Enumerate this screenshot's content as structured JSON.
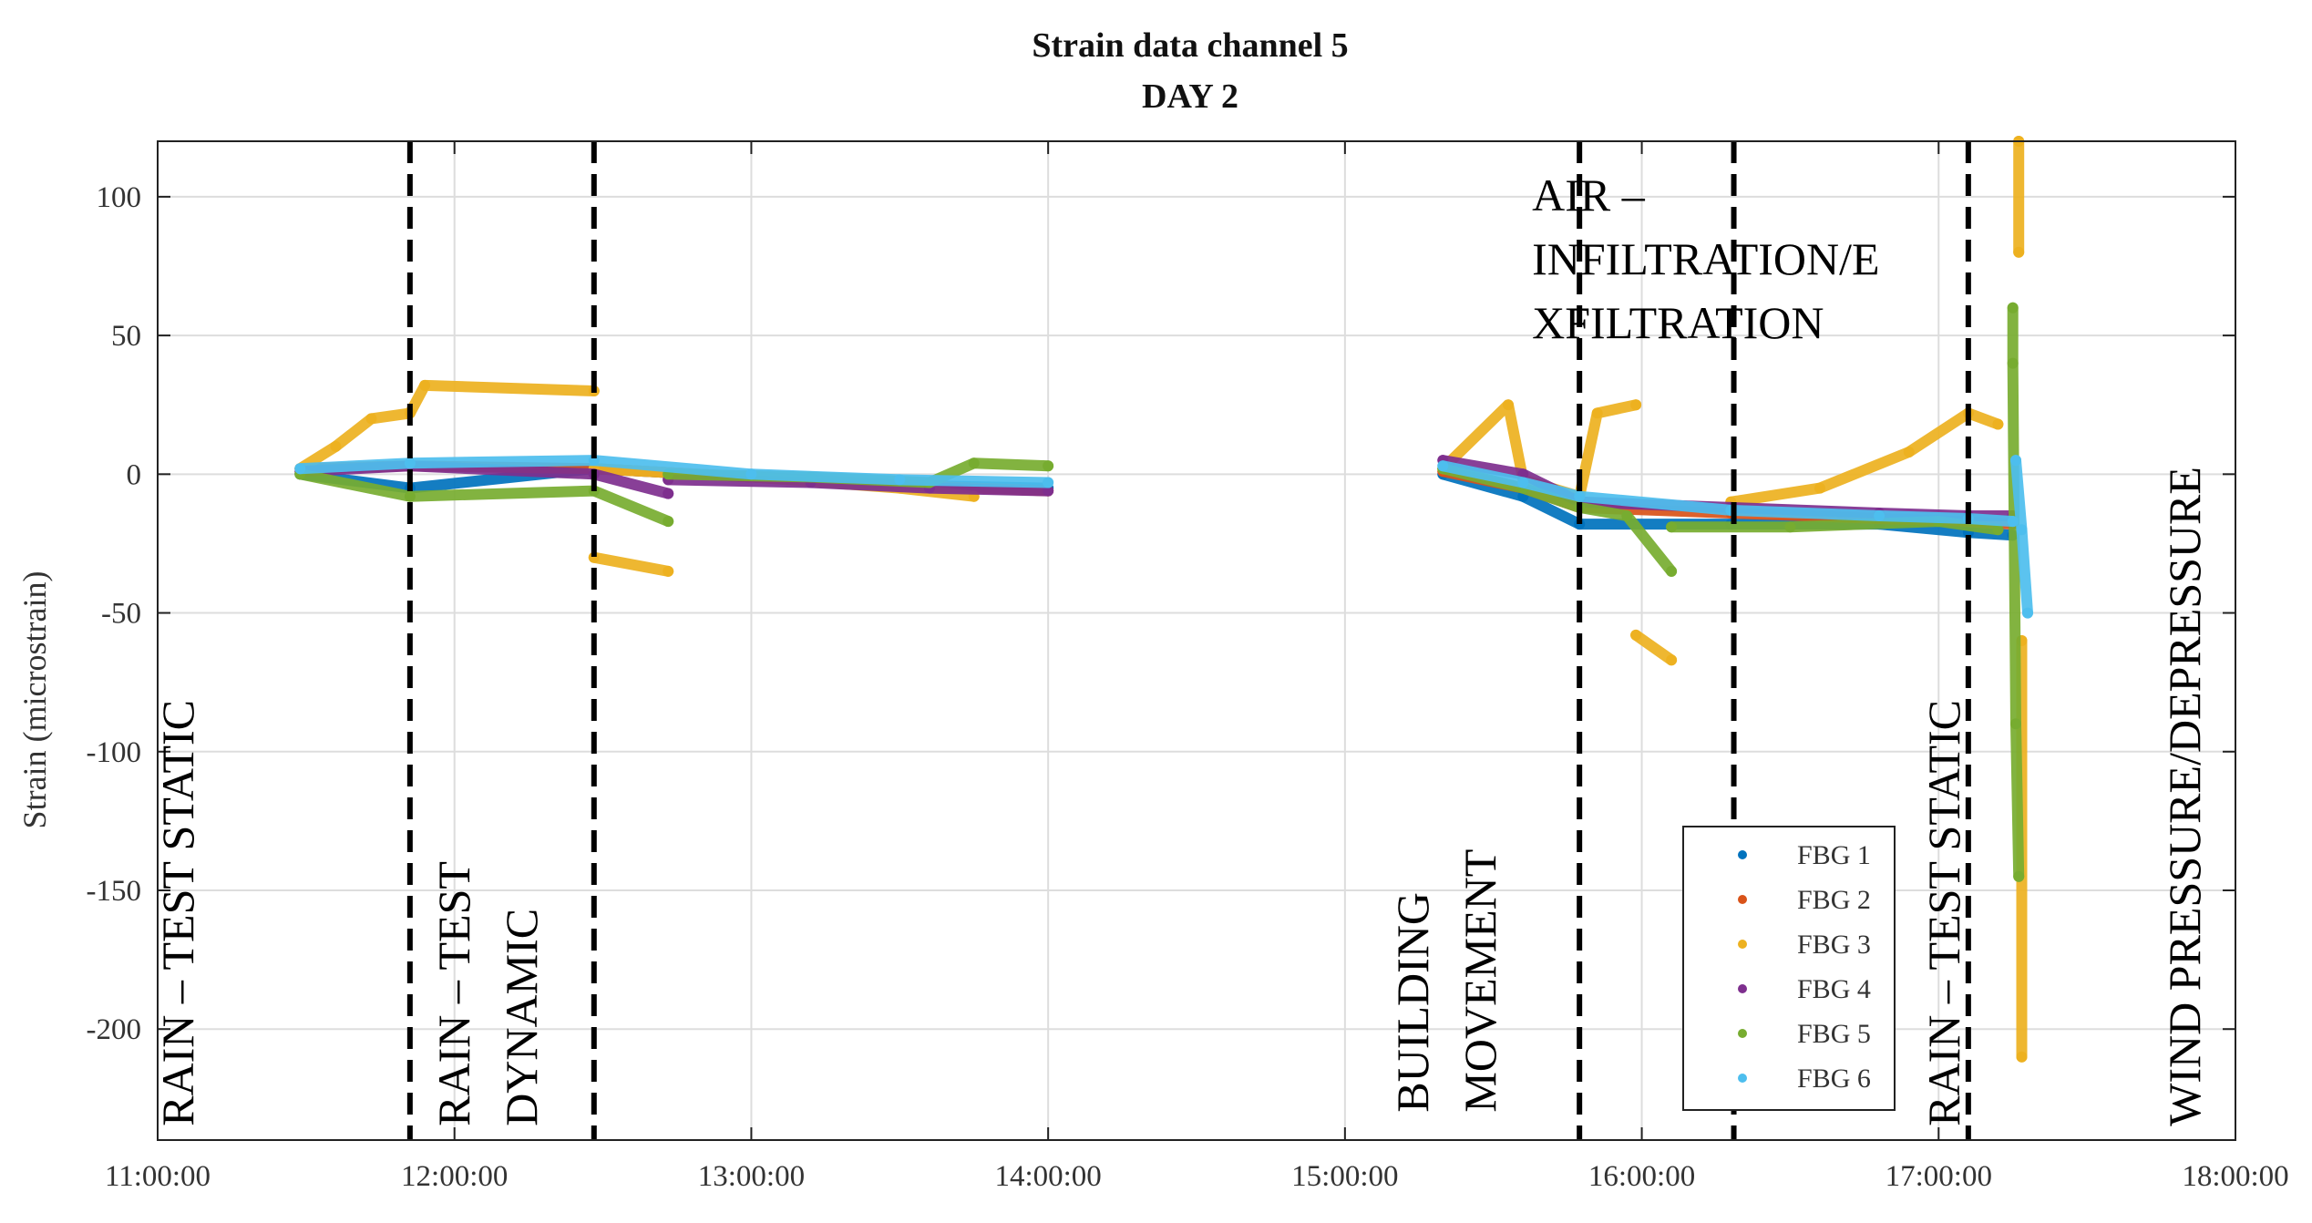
{
  "chart_data": {
    "type": "scatter",
    "title": "Strain data channel 5",
    "subtitle": "DAY 2",
    "xlabel": "",
    "ylabel": "Strain (microstrain)",
    "x_unit": "hours",
    "xlim": [
      11.0,
      18.0
    ],
    "ylim": [
      -240,
      120
    ],
    "x_ticks": [
      11,
      12,
      13,
      14,
      15,
      16,
      17,
      18
    ],
    "x_tick_labels": [
      "11:00:00",
      "12:00:00",
      "13:00:00",
      "14:00:00",
      "15:00:00",
      "16:00:00",
      "17:00:00",
      "18:00:00"
    ],
    "y_ticks": [
      100,
      50,
      0,
      -50,
      -100,
      -150,
      -200
    ],
    "y_tick_labels": [
      "100",
      "50",
      "0",
      "-50",
      "-100",
      "-150",
      "-200"
    ],
    "grid": true,
    "legend_position": "bottom-right",
    "event_lines_x": [
      11.85,
      12.47,
      15.79,
      16.31,
      17.1
    ],
    "annotations": [
      {
        "lines": [
          "RAIN – TEST STATIC"
        ],
        "x": 11.12,
        "y": -235,
        "rotated": true
      },
      {
        "lines": [
          "RAIN – TEST",
          "DYNAMIC"
        ],
        "x": 12.05,
        "y": -235,
        "rotated": true
      },
      {
        "lines": [
          "BUILDING",
          "MOVEMENT"
        ],
        "x": 15.28,
        "y": -230,
        "rotated": true
      },
      {
        "lines": [
          "AIR –",
          "INFILTRATION/E",
          "XFILTRATION"
        ],
        "x": 15.63,
        "y": 95,
        "rotated": false
      },
      {
        "lines": [
          "RAIN – TEST STATIC"
        ],
        "x": 17.07,
        "y": -235,
        "rotated": true
      },
      {
        "lines": [
          "WIND PRESSURE/DEPRESSURE"
        ],
        "x": 17.88,
        "y": -235,
        "rotated": true
      }
    ],
    "series": [
      {
        "name": "FBG 1",
        "color": "#0072BD",
        "segments": [
          [
            [
              11.48,
              0
            ],
            [
              11.85,
              -5
            ],
            [
              12.47,
              2
            ],
            [
              13.0,
              -1
            ],
            [
              13.5,
              -4
            ],
            [
              14.0,
              -5
            ]
          ],
          [
            [
              15.33,
              0
            ],
            [
              15.6,
              -8
            ],
            [
              15.79,
              -18
            ],
            [
              16.3,
              -18
            ],
            [
              16.8,
              -18
            ],
            [
              17.1,
              -21
            ],
            [
              17.25,
              -22
            ]
          ]
        ]
      },
      {
        "name": "FBG 2",
        "color": "#D95319",
        "segments": [
          [
            [
              11.48,
              2
            ],
            [
              11.85,
              3
            ],
            [
              12.47,
              2
            ],
            [
              13.0,
              -1
            ],
            [
              13.5,
              -4
            ],
            [
              14.0,
              -6
            ]
          ],
          [
            [
              15.33,
              1
            ],
            [
              15.6,
              -5
            ],
            [
              15.79,
              -12
            ],
            [
              16.3,
              -14
            ],
            [
              16.8,
              -16
            ],
            [
              17.1,
              -17
            ],
            [
              17.25,
              -18
            ]
          ]
        ]
      },
      {
        "name": "FBG 3",
        "color": "#EDB120",
        "segments": [
          [
            [
              11.48,
              2
            ],
            [
              11.6,
              10
            ],
            [
              11.72,
              20
            ],
            [
              11.85,
              22
            ],
            [
              11.9,
              32
            ],
            [
              12.47,
              30
            ]
          ],
          [
            [
              12.47,
              -30
            ],
            [
              12.72,
              -35
            ]
          ],
          [
            [
              12.47,
              2
            ],
            [
              13.0,
              -1
            ],
            [
              13.5,
              -5
            ],
            [
              13.75,
              -8
            ]
          ],
          [
            [
              15.33,
              2
            ],
            [
              15.55,
              25
            ],
            [
              15.6,
              -2
            ],
            [
              15.79,
              -8
            ],
            [
              15.85,
              22
            ],
            [
              15.98,
              25
            ]
          ],
          [
            [
              15.98,
              -58
            ],
            [
              16.1,
              -67
            ]
          ],
          [
            [
              16.3,
              -10
            ],
            [
              16.6,
              -5
            ],
            [
              16.9,
              8
            ],
            [
              17.1,
              22
            ],
            [
              17.2,
              18
            ]
          ],
          [
            [
              17.27,
              120
            ],
            [
              17.27,
              80
            ]
          ],
          [
            [
              17.28,
              -60
            ],
            [
              17.28,
              -210
            ]
          ]
        ]
      },
      {
        "name": "FBG 4",
        "color": "#7E2F8E",
        "segments": [
          [
            [
              11.48,
              1
            ],
            [
              11.85,
              3
            ],
            [
              12.47,
              0
            ],
            [
              12.72,
              -7
            ]
          ],
          [
            [
              12.72,
              -2
            ],
            [
              13.2,
              -3
            ],
            [
              13.6,
              -5
            ],
            [
              14.0,
              -6
            ]
          ],
          [
            [
              15.33,
              5
            ],
            [
              15.6,
              0
            ],
            [
              15.79,
              -10
            ],
            [
              16.3,
              -12
            ],
            [
              16.8,
              -14
            ],
            [
              17.1,
              -15
            ],
            [
              17.25,
              -15
            ]
          ]
        ]
      },
      {
        "name": "FBG 5",
        "color": "#77AC30",
        "segments": [
          [
            [
              11.48,
              0
            ],
            [
              11.85,
              -8
            ],
            [
              12.47,
              -6
            ],
            [
              12.72,
              -17
            ]
          ],
          [
            [
              12.72,
              0
            ],
            [
              13.2,
              -1
            ],
            [
              13.6,
              -3
            ],
            [
              13.75,
              4
            ],
            [
              14.0,
              3
            ]
          ],
          [
            [
              15.33,
              2
            ],
            [
              15.6,
              -5
            ],
            [
              15.79,
              -12
            ],
            [
              15.95,
              -15
            ],
            [
              16.1,
              -35
            ]
          ],
          [
            [
              16.1,
              -19
            ],
            [
              16.5,
              -19
            ],
            [
              17.0,
              -17
            ],
            [
              17.2,
              -20
            ]
          ],
          [
            [
              17.25,
              60
            ],
            [
              17.25,
              40
            ],
            [
              17.26,
              -90
            ],
            [
              17.27,
              -145
            ]
          ]
        ]
      },
      {
        "name": "FBG 6",
        "color": "#4DBEEE",
        "segments": [
          [
            [
              11.48,
              2
            ],
            [
              11.85,
              4
            ],
            [
              12.47,
              5
            ],
            [
              13.0,
              0
            ],
            [
              13.5,
              -2
            ],
            [
              14.0,
              -3
            ]
          ],
          [
            [
              15.33,
              3
            ],
            [
              15.6,
              -3
            ],
            [
              15.79,
              -8
            ],
            [
              16.3,
              -13
            ],
            [
              16.8,
              -15
            ],
            [
              17.1,
              -16
            ],
            [
              17.25,
              -17
            ]
          ],
          [
            [
              17.26,
              5
            ],
            [
              17.28,
              -20
            ],
            [
              17.3,
              -50
            ]
          ]
        ]
      }
    ]
  }
}
